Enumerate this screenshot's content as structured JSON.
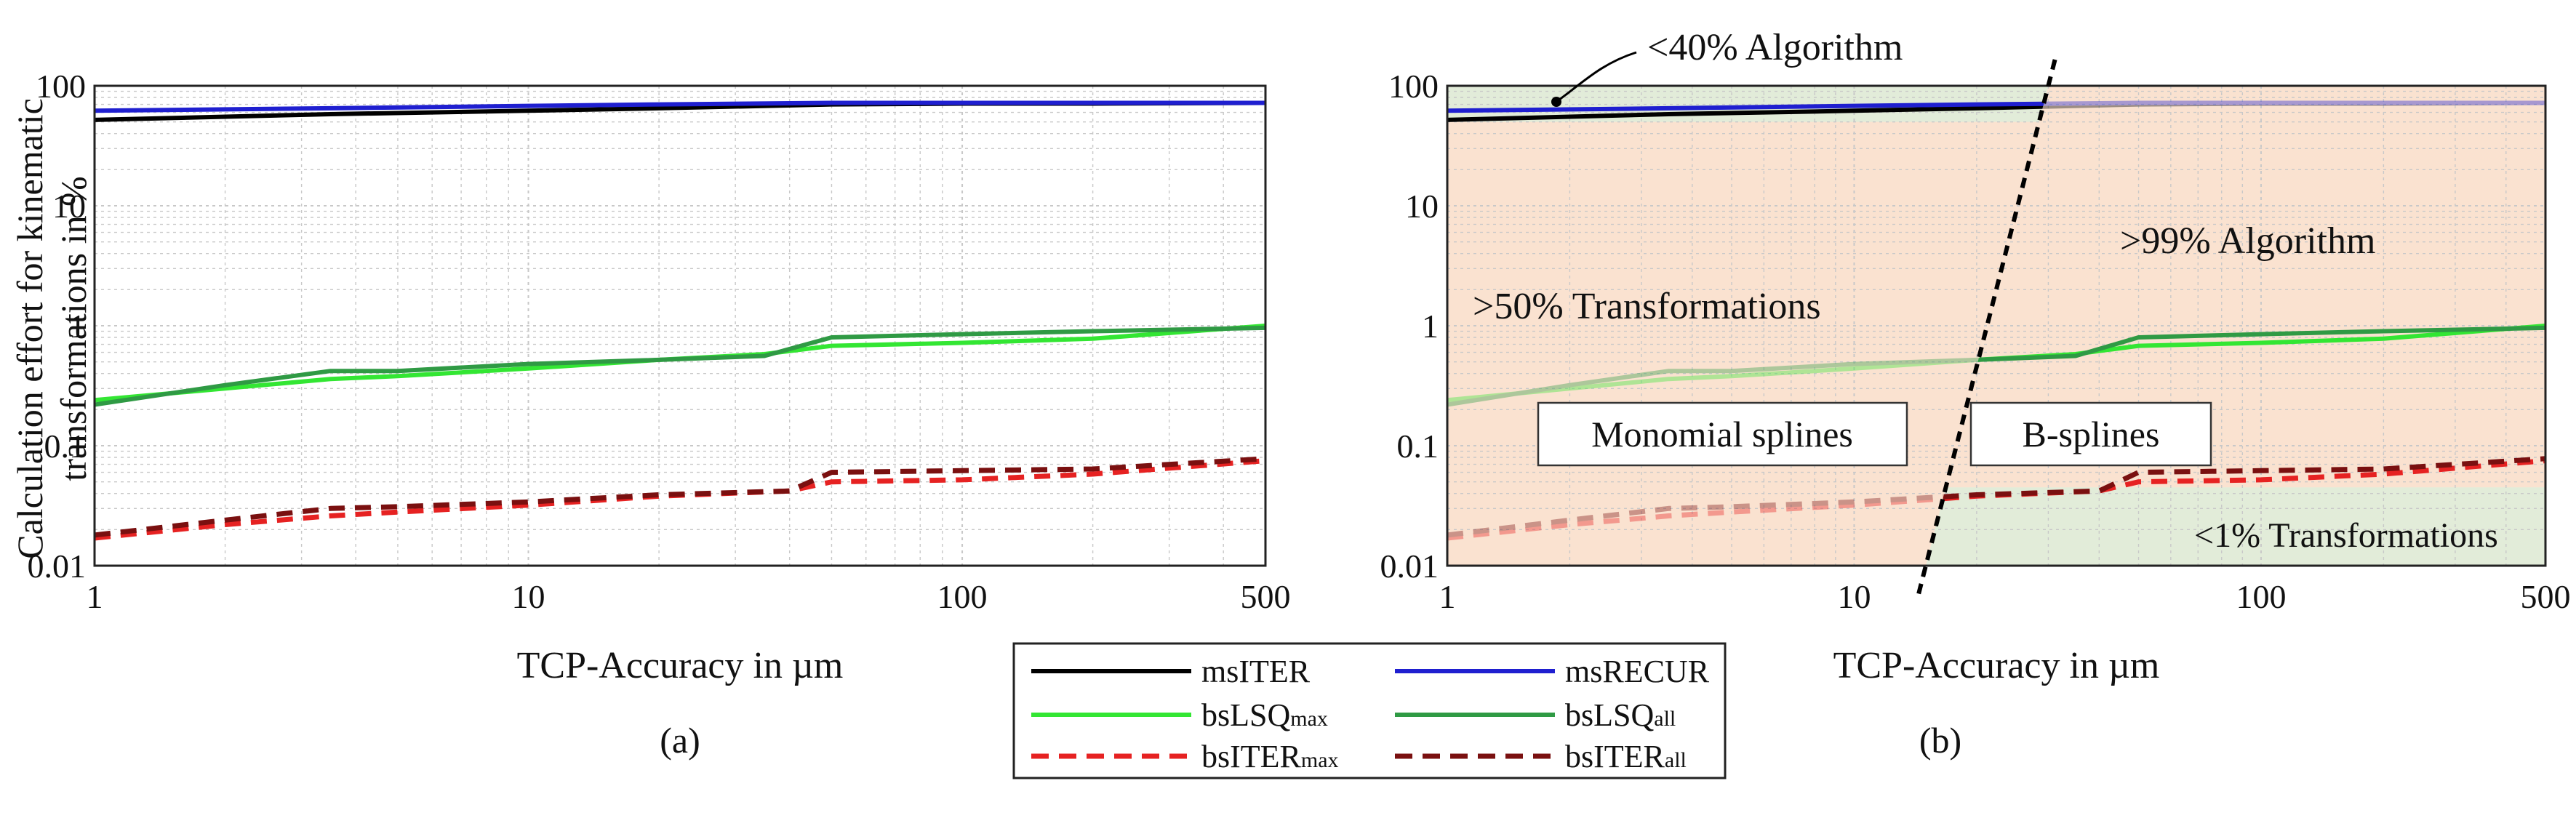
{
  "ylabel_line1": "Calculation effort for kinematic",
  "ylabel_line2": "transformations in %",
  "colors": {
    "msITER": "#000000",
    "msRECUR": "#1f1fd0",
    "bsLSQmax": "#33e633",
    "bsLSQall": "#2f9a44",
    "bsITERmax": "#e62222",
    "bsITERall": "#7a1010",
    "green_region": "#e2ecd9",
    "orange_region": "#fae2d0",
    "grid": "#c8c8c8"
  },
  "legend": {
    "items": [
      {
        "key": "msITER",
        "name": "msITER",
        "sub": "",
        "dash": false
      },
      {
        "key": "msRECUR",
        "name": "msRECUR",
        "sub": "",
        "dash": false
      },
      {
        "key": "bsLSQmax",
        "name": "bsLSQ",
        "sub": "max",
        "dash": false
      },
      {
        "key": "bsLSQall",
        "name": "bsLSQ",
        "sub": "all",
        "dash": false
      },
      {
        "key": "bsITERmax",
        "name": "bsITER",
        "sub": "max",
        "dash": true
      },
      {
        "key": "bsITERall",
        "name": "bsITER",
        "sub": "all",
        "dash": true
      }
    ]
  },
  "annotations": {
    "algo_low": "<40% Algorithm",
    "algo_high": ">99% Algorithm",
    "transf_high": ">50% Transformations",
    "transf_low": "<1% Transformations",
    "monomial": "Monomial splines",
    "bsplines": "B-splines"
  },
  "chart_data": [
    {
      "type": "line",
      "panel_label": "(a)",
      "xlabel": "TCP-Accuracy in µm",
      "xscale": "log",
      "yscale": "log",
      "xlim": [
        1,
        500
      ],
      "ylim": [
        0.01,
        100
      ],
      "xticks": [
        1,
        10,
        100,
        500
      ],
      "xtick_labels": [
        "1",
        "10",
        "100",
        "500"
      ],
      "yticks": [
        0.01,
        0.1,
        1,
        10,
        100
      ],
      "ytick_labels": [
        "0.01",
        "0.1",
        "1",
        "10",
        "100"
      ],
      "grid": true,
      "series": [
        {
          "name": "msITER",
          "x": [
            1,
            3.5,
            10,
            20,
            50,
            100,
            200,
            500
          ],
          "y": [
            52,
            58,
            62,
            65,
            70,
            71,
            71,
            72
          ]
        },
        {
          "name": "msRECUR",
          "x": [
            1,
            3.5,
            10,
            20,
            50,
            100,
            200,
            500
          ],
          "y": [
            62,
            65,
            68,
            70,
            72,
            72,
            72,
            72
          ]
        },
        {
          "name": "bsLSQmax",
          "x": [
            1,
            2,
            3.5,
            5,
            10,
            20,
            35,
            50,
            100,
            200,
            500
          ],
          "y": [
            0.24,
            0.3,
            0.36,
            0.38,
            0.44,
            0.52,
            0.58,
            0.68,
            0.72,
            0.78,
            1.0
          ]
        },
        {
          "name": "bsLSQall",
          "x": [
            1,
            2,
            3.5,
            5,
            10,
            20,
            35,
            50,
            100,
            200,
            500
          ],
          "y": [
            0.22,
            0.32,
            0.42,
            0.42,
            0.48,
            0.52,
            0.56,
            0.8,
            0.85,
            0.9,
            0.96
          ]
        },
        {
          "name": "bsITERmax",
          "x": [
            1,
            2,
            3.5,
            5,
            10,
            20,
            40,
            50,
            100,
            200,
            500
          ],
          "y": [
            0.017,
            0.022,
            0.026,
            0.028,
            0.032,
            0.038,
            0.042,
            0.05,
            0.052,
            0.058,
            0.075
          ]
        },
        {
          "name": "bsITERall",
          "x": [
            1,
            2,
            3.5,
            5,
            10,
            20,
            40,
            50,
            100,
            200,
            500
          ],
          "y": [
            0.018,
            0.024,
            0.03,
            0.031,
            0.034,
            0.039,
            0.042,
            0.06,
            0.062,
            0.064,
            0.078
          ]
        }
      ]
    },
    {
      "type": "line",
      "panel_label": "(b)",
      "xlabel": "TCP-Accuracy in µm",
      "xscale": "log",
      "yscale": "log",
      "xlim": [
        1,
        500
      ],
      "ylim": [
        0.01,
        100
      ],
      "xticks": [
        1,
        10,
        100,
        500
      ],
      "xtick_labels": [
        "1",
        "10",
        "100",
        "500"
      ],
      "yticks": [
        0.01,
        0.1,
        1,
        10,
        100
      ],
      "ytick_labels": [
        "0.01",
        "0.1",
        "1",
        "10",
        "100"
      ],
      "grid": true,
      "divider": {
        "x_top": 30,
        "x_bottom": 15
      },
      "series": [
        {
          "name": "msITER",
          "x": [
            1,
            3.5,
            10,
            20,
            50,
            100,
            200,
            500
          ],
          "y": [
            52,
            58,
            62,
            65,
            70,
            71,
            71,
            72
          ]
        },
        {
          "name": "msRECUR",
          "x": [
            1,
            3.5,
            10,
            20,
            50,
            100,
            200,
            500
          ],
          "y": [
            62,
            65,
            68,
            70,
            72,
            72,
            72,
            72
          ]
        },
        {
          "name": "bsLSQmax",
          "x": [
            1,
            2,
            3.5,
            5,
            10,
            20,
            35,
            50,
            100,
            200,
            500
          ],
          "y": [
            0.24,
            0.3,
            0.36,
            0.38,
            0.44,
            0.52,
            0.58,
            0.68,
            0.72,
            0.78,
            1.0
          ]
        },
        {
          "name": "bsLSQall",
          "x": [
            1,
            2,
            3.5,
            5,
            10,
            20,
            35,
            50,
            100,
            200,
            500
          ],
          "y": [
            0.22,
            0.32,
            0.42,
            0.42,
            0.48,
            0.52,
            0.56,
            0.8,
            0.85,
            0.9,
            0.96
          ]
        },
        {
          "name": "bsITERmax",
          "x": [
            1,
            2,
            3.5,
            5,
            10,
            20,
            40,
            50,
            100,
            200,
            500
          ],
          "y": [
            0.017,
            0.022,
            0.026,
            0.028,
            0.032,
            0.038,
            0.042,
            0.05,
            0.052,
            0.058,
            0.075
          ]
        },
        {
          "name": "bsITERall",
          "x": [
            1,
            2,
            3.5,
            5,
            10,
            20,
            40,
            50,
            100,
            200,
            500
          ],
          "y": [
            0.018,
            0.024,
            0.03,
            0.031,
            0.034,
            0.039,
            0.042,
            0.06,
            0.062,
            0.064,
            0.078
          ]
        }
      ]
    }
  ]
}
